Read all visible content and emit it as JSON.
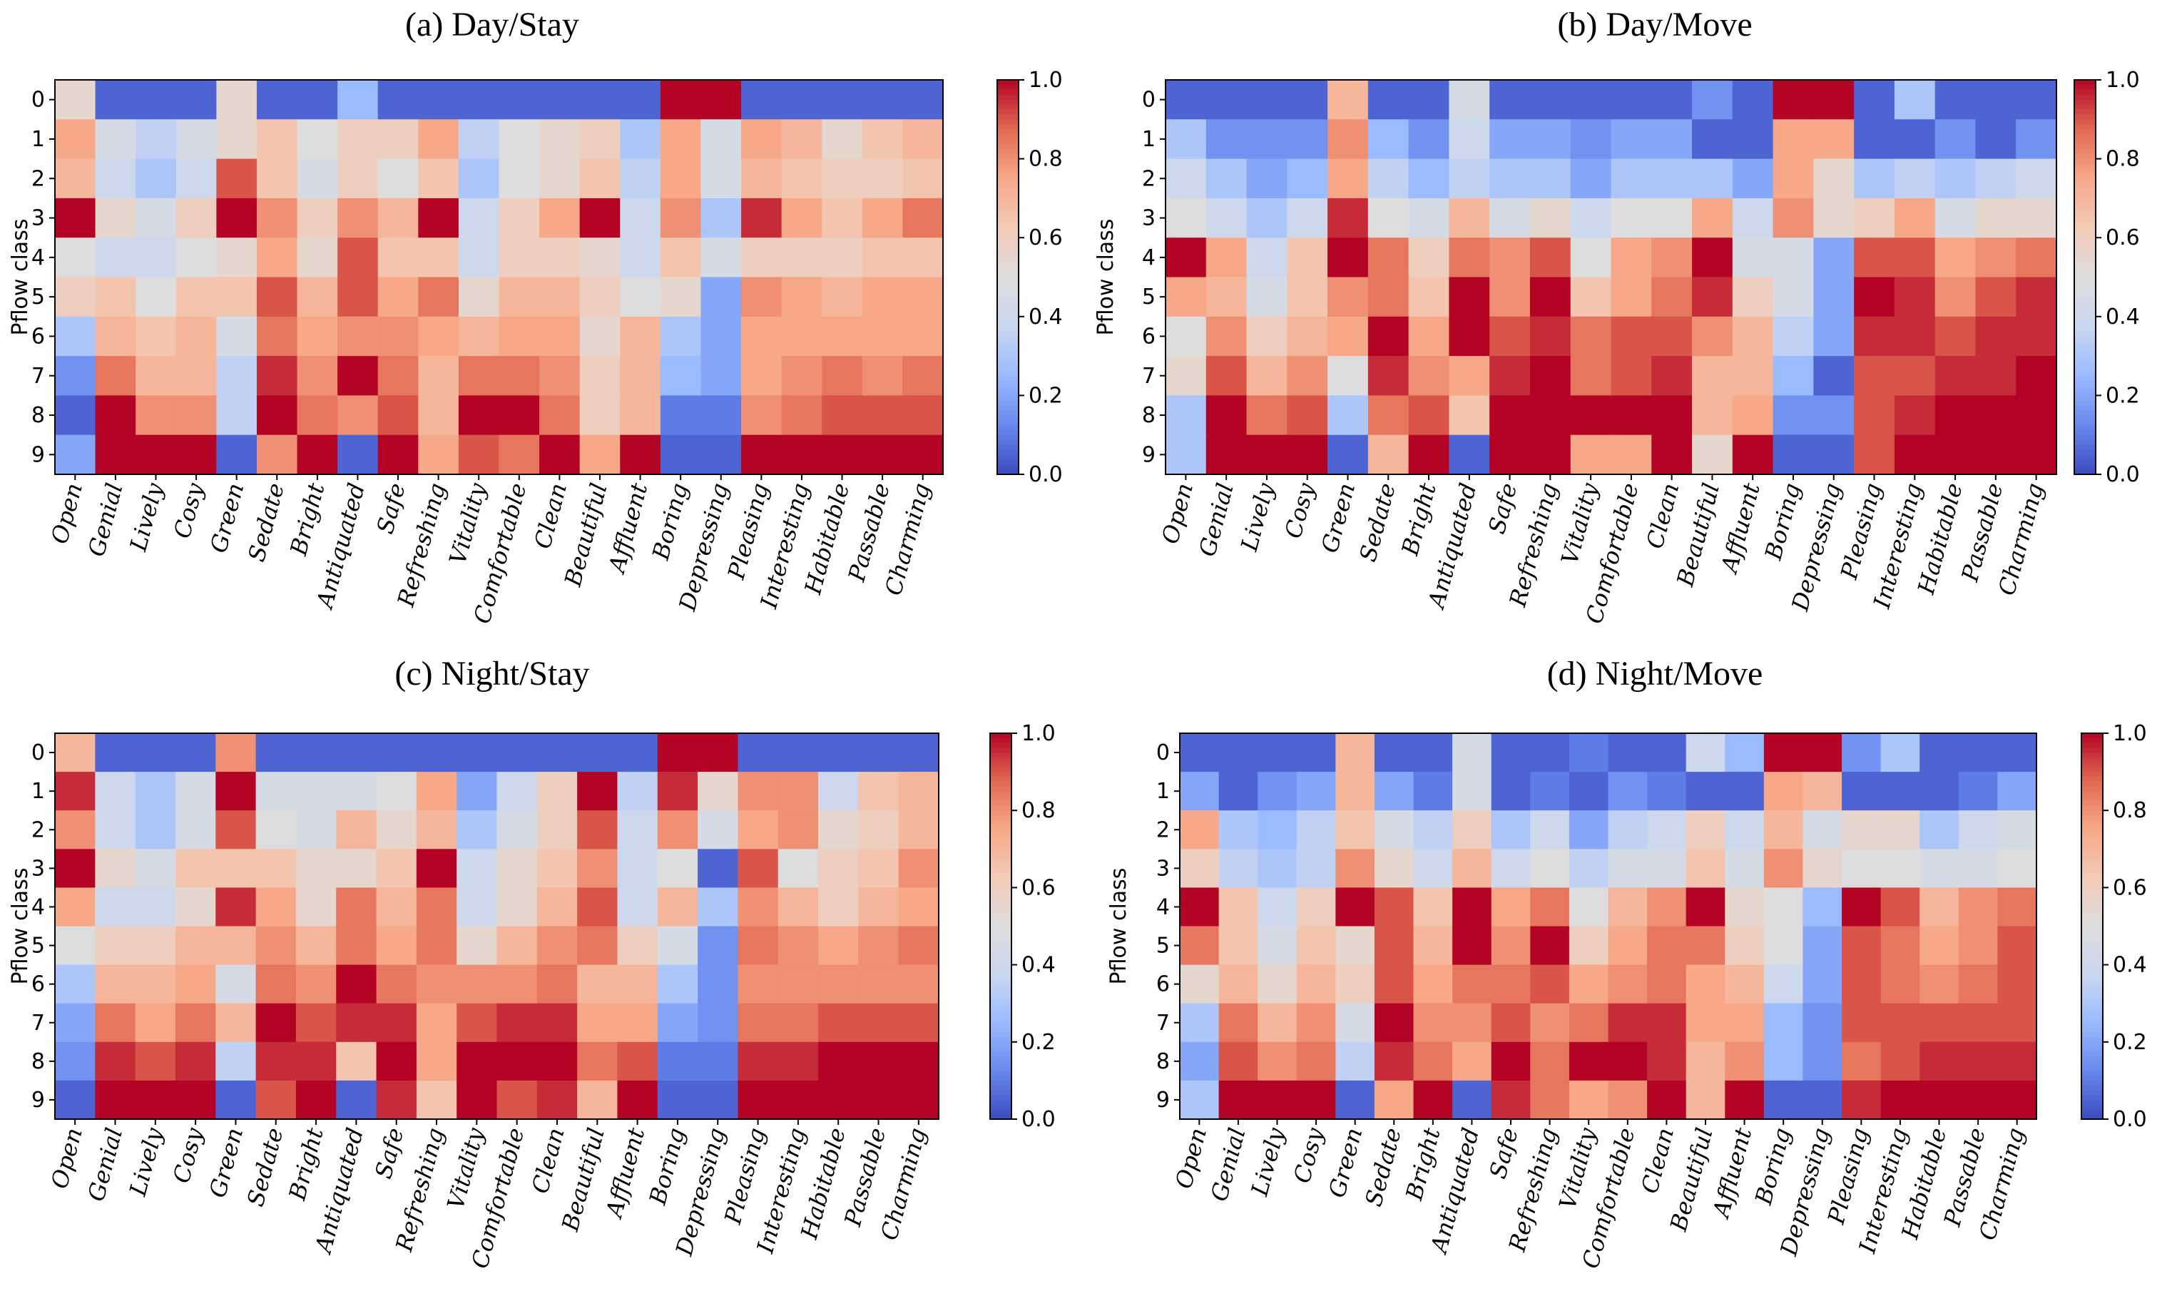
{
  "figure": {
    "colormap": "coolwarm",
    "colormap_stops": [
      "#3b4cc0",
      "#6788ee",
      "#9abbff",
      "#c9d7f0",
      "#dddddd",
      "#f2cbb7",
      "#f7a889",
      "#e26952",
      "#b40426"
    ]
  },
  "chart_data": [
    {
      "type": "heatmap",
      "title": "(a) Day/Stay",
      "ylabel": "Pflow class",
      "xlabel": "",
      "x_categories": [
        "Open",
        "Genial",
        "Lively",
        "Cosy",
        "Green",
        "Sedate",
        "Bright",
        "Antiquated",
        "Safe",
        "Refreshing",
        "Vitality",
        "Comfortable",
        "Clean",
        "Beautiful",
        "Affluent",
        "Boring",
        "Depressing",
        "Pleasing",
        "Interesting",
        "Habitable",
        "Passable",
        "Charming"
      ],
      "y_categories": [
        "0",
        "1",
        "2",
        "3",
        "4",
        "5",
        "6",
        "7",
        "8",
        "9"
      ],
      "colorbar": {
        "min": 0.0,
        "max": 1.0,
        "ticks": [
          "0.0",
          "0.2",
          "0.4",
          "0.6",
          "0.8",
          "1.0"
        ]
      },
      "values": [
        [
          0.55,
          0.05,
          0.05,
          0.05,
          0.55,
          0.05,
          0.05,
          0.25,
          0.05,
          0.05,
          0.05,
          0.05,
          0.05,
          0.05,
          0.05,
          1.0,
          1.0,
          0.05,
          0.05,
          0.05,
          0.05,
          0.05
        ],
        [
          0.75,
          0.45,
          0.35,
          0.45,
          0.55,
          0.65,
          0.5,
          0.6,
          0.6,
          0.75,
          0.35,
          0.5,
          0.55,
          0.6,
          0.3,
          0.75,
          0.45,
          0.75,
          0.7,
          0.55,
          0.65,
          0.7
        ],
        [
          0.7,
          0.4,
          0.3,
          0.4,
          0.9,
          0.65,
          0.45,
          0.6,
          0.5,
          0.65,
          0.3,
          0.5,
          0.55,
          0.65,
          0.35,
          0.75,
          0.45,
          0.7,
          0.65,
          0.6,
          0.6,
          0.65
        ],
        [
          1.0,
          0.55,
          0.45,
          0.6,
          1.0,
          0.8,
          0.6,
          0.8,
          0.7,
          1.0,
          0.4,
          0.6,
          0.75,
          1.0,
          0.4,
          0.8,
          0.3,
          0.95,
          0.75,
          0.65,
          0.75,
          0.85
        ],
        [
          0.5,
          0.4,
          0.4,
          0.5,
          0.55,
          0.75,
          0.55,
          0.9,
          0.65,
          0.65,
          0.4,
          0.6,
          0.6,
          0.55,
          0.4,
          0.65,
          0.45,
          0.6,
          0.6,
          0.6,
          0.65,
          0.65
        ],
        [
          0.6,
          0.65,
          0.5,
          0.65,
          0.65,
          0.9,
          0.7,
          0.9,
          0.75,
          0.85,
          0.55,
          0.7,
          0.7,
          0.6,
          0.5,
          0.55,
          0.2,
          0.8,
          0.75,
          0.7,
          0.75,
          0.75
        ],
        [
          0.3,
          0.7,
          0.65,
          0.7,
          0.45,
          0.85,
          0.75,
          0.8,
          0.8,
          0.75,
          0.7,
          0.75,
          0.75,
          0.55,
          0.7,
          0.3,
          0.2,
          0.75,
          0.75,
          0.75,
          0.75,
          0.75
        ],
        [
          0.15,
          0.85,
          0.7,
          0.7,
          0.35,
          0.95,
          0.8,
          1.0,
          0.85,
          0.7,
          0.85,
          0.85,
          0.8,
          0.6,
          0.7,
          0.25,
          0.2,
          0.75,
          0.8,
          0.85,
          0.8,
          0.85
        ],
        [
          0.05,
          1.0,
          0.8,
          0.8,
          0.35,
          1.0,
          0.85,
          0.8,
          0.9,
          0.7,
          1.0,
          1.0,
          0.85,
          0.6,
          0.7,
          0.1,
          0.1,
          0.8,
          0.85,
          0.9,
          0.9,
          0.9
        ],
        [
          0.2,
          1.0,
          1.0,
          1.0,
          0.05,
          0.8,
          1.0,
          0.05,
          1.0,
          0.75,
          0.9,
          0.85,
          1.0,
          0.75,
          1.0,
          0.05,
          0.05,
          1.0,
          1.0,
          1.0,
          1.0,
          1.0
        ]
      ]
    },
    {
      "type": "heatmap",
      "title": "(b) Day/Move",
      "ylabel": "Pflow class",
      "xlabel": "",
      "x_categories": [
        "Open",
        "Genial",
        "Lively",
        "Cosy",
        "Green",
        "Sedate",
        "Bright",
        "Antiquated",
        "Safe",
        "Refreshing",
        "Vitality",
        "Comfortable",
        "Clean",
        "Beautiful",
        "Affluent",
        "Boring",
        "Depressing",
        "Pleasing",
        "Interesting",
        "Habitable",
        "Passable",
        "Charming"
      ],
      "y_categories": [
        "0",
        "1",
        "2",
        "3",
        "4",
        "5",
        "6",
        "7",
        "8",
        "9"
      ],
      "colorbar": {
        "min": 0.0,
        "max": 1.0,
        "ticks": [
          "0.0",
          "0.2",
          "0.4",
          "0.6",
          "0.8",
          "1.0"
        ]
      },
      "values": [
        [
          0.05,
          0.05,
          0.05,
          0.05,
          0.7,
          0.05,
          0.05,
          0.45,
          0.05,
          0.05,
          0.05,
          0.05,
          0.05,
          0.15,
          0.05,
          1.0,
          1.0,
          0.05,
          0.3,
          0.05,
          0.05,
          0.05
        ],
        [
          0.3,
          0.15,
          0.15,
          0.15,
          0.8,
          0.25,
          0.15,
          0.4,
          0.2,
          0.2,
          0.15,
          0.2,
          0.2,
          0.05,
          0.05,
          0.75,
          0.75,
          0.05,
          0.05,
          0.15,
          0.05,
          0.15
        ],
        [
          0.4,
          0.3,
          0.2,
          0.25,
          0.75,
          0.35,
          0.25,
          0.35,
          0.3,
          0.3,
          0.2,
          0.3,
          0.3,
          0.3,
          0.2,
          0.75,
          0.55,
          0.3,
          0.35,
          0.3,
          0.35,
          0.4
        ],
        [
          0.5,
          0.4,
          0.3,
          0.4,
          0.95,
          0.5,
          0.45,
          0.7,
          0.45,
          0.55,
          0.4,
          0.5,
          0.5,
          0.75,
          0.4,
          0.8,
          0.55,
          0.6,
          0.75,
          0.45,
          0.55,
          0.55
        ],
        [
          1.0,
          0.75,
          0.4,
          0.65,
          1.0,
          0.85,
          0.6,
          0.85,
          0.8,
          0.9,
          0.5,
          0.75,
          0.8,
          1.0,
          0.45,
          0.45,
          0.2,
          0.9,
          0.9,
          0.75,
          0.8,
          0.85
        ],
        [
          0.75,
          0.7,
          0.45,
          0.65,
          0.8,
          0.85,
          0.65,
          1.0,
          0.8,
          1.0,
          0.65,
          0.75,
          0.85,
          0.95,
          0.6,
          0.45,
          0.2,
          1.0,
          0.95,
          0.8,
          0.9,
          0.95
        ],
        [
          0.5,
          0.8,
          0.6,
          0.7,
          0.75,
          1.0,
          0.75,
          1.0,
          0.9,
          0.95,
          0.85,
          0.9,
          0.9,
          0.8,
          0.7,
          0.35,
          0.2,
          0.95,
          0.95,
          0.9,
          0.95,
          0.95
        ],
        [
          0.55,
          0.9,
          0.7,
          0.8,
          0.5,
          0.95,
          0.8,
          0.75,
          0.95,
          1.0,
          0.85,
          0.9,
          0.95,
          0.7,
          0.7,
          0.25,
          0.05,
          0.9,
          0.9,
          0.95,
          0.95,
          1.0
        ],
        [
          0.3,
          1.0,
          0.85,
          0.9,
          0.3,
          0.85,
          0.9,
          0.65,
          1.0,
          1.0,
          1.0,
          1.0,
          1.0,
          0.7,
          0.75,
          0.15,
          0.15,
          0.9,
          0.95,
          1.0,
          1.0,
          1.0
        ],
        [
          0.3,
          1.0,
          1.0,
          1.0,
          0.05,
          0.7,
          1.0,
          0.05,
          1.0,
          1.0,
          0.75,
          0.75,
          1.0,
          0.55,
          1.0,
          0.05,
          0.05,
          0.9,
          1.0,
          1.0,
          1.0,
          1.0
        ]
      ]
    },
    {
      "type": "heatmap",
      "title": "(c) Night/Stay",
      "ylabel": "Pflow class",
      "xlabel": "",
      "x_categories": [
        "Open",
        "Genial",
        "Lively",
        "Cosy",
        "Green",
        "Sedate",
        "Bright",
        "Antiquated",
        "Safe",
        "Refreshing",
        "Vitality",
        "Comfortable",
        "Clean",
        "Beautiful",
        "Affluent",
        "Boring",
        "Depressing",
        "Pleasing",
        "Interesting",
        "Habitable",
        "Passable",
        "Charming"
      ],
      "y_categories": [
        "0",
        "1",
        "2",
        "3",
        "4",
        "5",
        "6",
        "7",
        "8",
        "9"
      ],
      "colorbar": {
        "min": 0.0,
        "max": 1.0,
        "ticks": [
          "0.0",
          "0.2",
          "0.4",
          "0.6",
          "0.8",
          "1.0"
        ]
      },
      "values": [
        [
          0.7,
          0.05,
          0.05,
          0.05,
          0.8,
          0.05,
          0.05,
          0.05,
          0.05,
          0.05,
          0.05,
          0.05,
          0.05,
          0.05,
          0.05,
          1.0,
          1.0,
          0.05,
          0.05,
          0.05,
          0.05,
          0.05
        ],
        [
          0.95,
          0.4,
          0.3,
          0.45,
          1.0,
          0.45,
          0.45,
          0.45,
          0.5,
          0.75,
          0.2,
          0.4,
          0.6,
          1.0,
          0.35,
          0.95,
          0.55,
          0.8,
          0.8,
          0.4,
          0.65,
          0.7
        ],
        [
          0.8,
          0.4,
          0.3,
          0.45,
          0.9,
          0.5,
          0.45,
          0.7,
          0.55,
          0.7,
          0.3,
          0.45,
          0.6,
          0.9,
          0.4,
          0.8,
          0.45,
          0.75,
          0.8,
          0.55,
          0.6,
          0.7
        ],
        [
          1.0,
          0.55,
          0.45,
          0.65,
          0.65,
          0.65,
          0.55,
          0.55,
          0.65,
          1.0,
          0.4,
          0.55,
          0.65,
          0.8,
          0.4,
          0.5,
          0.05,
          0.9,
          0.5,
          0.6,
          0.65,
          0.8
        ],
        [
          0.75,
          0.4,
          0.4,
          0.55,
          0.95,
          0.75,
          0.55,
          0.85,
          0.7,
          0.85,
          0.4,
          0.55,
          0.7,
          0.9,
          0.4,
          0.7,
          0.3,
          0.8,
          0.7,
          0.6,
          0.7,
          0.75
        ],
        [
          0.5,
          0.6,
          0.6,
          0.7,
          0.7,
          0.8,
          0.7,
          0.85,
          0.75,
          0.85,
          0.55,
          0.7,
          0.8,
          0.85,
          0.6,
          0.45,
          0.15,
          0.85,
          0.8,
          0.75,
          0.8,
          0.85
        ],
        [
          0.3,
          0.7,
          0.7,
          0.75,
          0.45,
          0.85,
          0.8,
          1.0,
          0.85,
          0.8,
          0.8,
          0.8,
          0.85,
          0.7,
          0.7,
          0.3,
          0.15,
          0.8,
          0.8,
          0.8,
          0.8,
          0.8
        ],
        [
          0.2,
          0.85,
          0.75,
          0.85,
          0.7,
          1.0,
          0.9,
          0.95,
          0.95,
          0.75,
          0.9,
          0.95,
          0.95,
          0.75,
          0.75,
          0.2,
          0.15,
          0.85,
          0.85,
          0.9,
          0.9,
          0.9
        ],
        [
          0.15,
          0.95,
          0.9,
          0.95,
          0.35,
          0.95,
          0.95,
          0.65,
          1.0,
          0.75,
          1.0,
          1.0,
          1.0,
          0.85,
          0.9,
          0.1,
          0.1,
          0.95,
          0.95,
          1.0,
          1.0,
          1.0
        ],
        [
          0.05,
          1.0,
          1.0,
          1.0,
          0.05,
          0.9,
          1.0,
          0.05,
          0.95,
          0.65,
          1.0,
          0.9,
          0.95,
          0.7,
          1.0,
          0.05,
          0.05,
          1.0,
          1.0,
          1.0,
          1.0,
          1.0
        ]
      ]
    },
    {
      "type": "heatmap",
      "title": "(d) Night/Move",
      "ylabel": "Pflow class",
      "xlabel": "",
      "x_categories": [
        "Open",
        "Genial",
        "Lively",
        "Cosy",
        "Green",
        "Sedate",
        "Bright",
        "Antiquated",
        "Safe",
        "Refreshing",
        "Vitality",
        "Comfortable",
        "Clean",
        "Beautiful",
        "Affluent",
        "Boring",
        "Depressing",
        "Pleasing",
        "Interesting",
        "Habitable",
        "Passable",
        "Charming"
      ],
      "y_categories": [
        "0",
        "1",
        "2",
        "3",
        "4",
        "5",
        "6",
        "7",
        "8",
        "9"
      ],
      "colorbar": {
        "min": 0.0,
        "max": 1.0,
        "ticks": [
          "0.0",
          "0.2",
          "0.4",
          "0.6",
          "0.8",
          "1.0"
        ]
      },
      "values": [
        [
          0.05,
          0.05,
          0.05,
          0.05,
          0.7,
          0.05,
          0.05,
          0.45,
          0.05,
          0.05,
          0.1,
          0.05,
          0.05,
          0.4,
          0.25,
          1.0,
          1.0,
          0.15,
          0.3,
          0.05,
          0.05,
          0.05
        ],
        [
          0.2,
          0.05,
          0.15,
          0.2,
          0.7,
          0.2,
          0.1,
          0.45,
          0.05,
          0.1,
          0.05,
          0.15,
          0.1,
          0.05,
          0.05,
          0.75,
          0.7,
          0.05,
          0.05,
          0.05,
          0.1,
          0.2
        ],
        [
          0.75,
          0.3,
          0.25,
          0.35,
          0.65,
          0.45,
          0.35,
          0.6,
          0.3,
          0.4,
          0.2,
          0.35,
          0.4,
          0.6,
          0.4,
          0.7,
          0.45,
          0.55,
          0.55,
          0.3,
          0.4,
          0.45
        ],
        [
          0.6,
          0.35,
          0.3,
          0.35,
          0.8,
          0.55,
          0.4,
          0.7,
          0.4,
          0.5,
          0.35,
          0.45,
          0.45,
          0.65,
          0.45,
          0.8,
          0.55,
          0.5,
          0.5,
          0.45,
          0.45,
          0.5
        ],
        [
          1.0,
          0.65,
          0.4,
          0.6,
          1.0,
          0.9,
          0.65,
          1.0,
          0.75,
          0.85,
          0.5,
          0.7,
          0.8,
          1.0,
          0.55,
          0.5,
          0.25,
          1.0,
          0.9,
          0.7,
          0.8,
          0.85
        ],
        [
          0.85,
          0.65,
          0.45,
          0.65,
          0.55,
          0.9,
          0.7,
          1.0,
          0.8,
          1.0,
          0.6,
          0.75,
          0.85,
          0.85,
          0.6,
          0.5,
          0.2,
          0.9,
          0.85,
          0.75,
          0.8,
          0.9
        ],
        [
          0.55,
          0.7,
          0.55,
          0.7,
          0.6,
          0.9,
          0.75,
          0.85,
          0.85,
          0.9,
          0.75,
          0.8,
          0.85,
          0.75,
          0.7,
          0.4,
          0.2,
          0.9,
          0.85,
          0.8,
          0.85,
          0.9
        ],
        [
          0.3,
          0.85,
          0.7,
          0.8,
          0.45,
          1.0,
          0.8,
          0.8,
          0.9,
          0.8,
          0.85,
          0.95,
          0.95,
          0.75,
          0.75,
          0.25,
          0.15,
          0.9,
          0.9,
          0.9,
          0.9,
          0.9
        ],
        [
          0.2,
          0.9,
          0.8,
          0.85,
          0.35,
          0.95,
          0.85,
          0.75,
          1.0,
          0.85,
          1.0,
          1.0,
          0.95,
          0.7,
          0.8,
          0.25,
          0.15,
          0.85,
          0.9,
          0.95,
          0.95,
          0.95
        ],
        [
          0.3,
          1.0,
          1.0,
          1.0,
          0.05,
          0.75,
          1.0,
          0.05,
          0.95,
          0.85,
          0.75,
          0.8,
          1.0,
          0.7,
          1.0,
          0.05,
          0.05,
          0.95,
          1.0,
          1.0,
          1.0,
          1.0
        ]
      ]
    }
  ]
}
